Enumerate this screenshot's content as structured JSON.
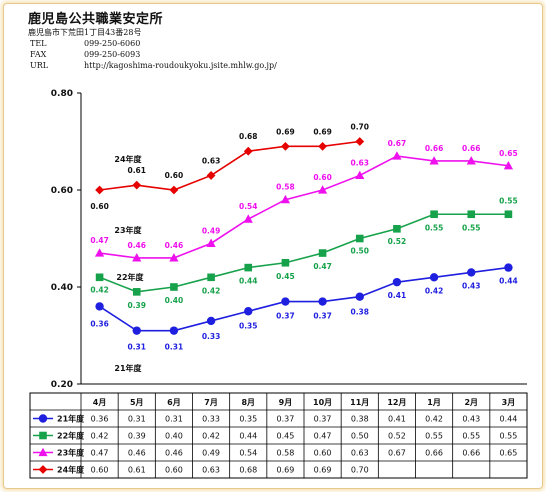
{
  "header": {
    "org_name": "鹿児島公共職業安定所",
    "address": "鹿児島市下荒田1丁目43番28号",
    "tel_label": "TEL",
    "tel": "099-250-6060",
    "fax_label": "FAX",
    "fax": "099-250-6093",
    "url_label": "URL",
    "url": "http://kagoshima-roudoukyoku.jsite.mhlw.go.jp/"
  },
  "chart_data": {
    "type": "line",
    "categories": [
      "4月",
      "5月",
      "6月",
      "7月",
      "8月",
      "9月",
      "10月",
      "11月",
      "12月",
      "1月",
      "2月",
      "3月"
    ],
    "ylim": [
      0.2,
      0.8
    ],
    "yticks": [
      "0.80",
      "0.60",
      "0.40",
      "0.20"
    ],
    "grid": false,
    "legend": "table-below",
    "series": [
      {
        "name": "21年度",
        "color": "#1f1fe0",
        "marker": "circle",
        "values": [
          0.36,
          0.31,
          0.31,
          0.33,
          0.35,
          0.37,
          0.37,
          0.38,
          0.41,
          0.42,
          0.43,
          0.44
        ],
        "labels": [
          "0.36",
          "0.31",
          "0.31",
          "0.33",
          "0.35",
          "0.37",
          "0.37",
          "0.38",
          "0.41",
          "0.42",
          "0.43",
          "0.44"
        ]
      },
      {
        "name": "22年度",
        "color": "#16a24a",
        "marker": "square",
        "values": [
          0.42,
          0.39,
          0.4,
          0.42,
          0.44,
          0.45,
          0.47,
          0.5,
          0.52,
          0.55,
          0.55,
          0.55
        ],
        "labels": [
          "0.42",
          "0.39",
          "0.40",
          "0.42",
          "0.44",
          "0.45",
          "0.47",
          "0.50",
          "0.52",
          "0.55",
          "0.55",
          "0.55"
        ]
      },
      {
        "name": "23年度",
        "color": "#ee11ee",
        "marker": "triangle",
        "values": [
          0.47,
          0.46,
          0.46,
          0.49,
          0.54,
          0.58,
          0.6,
          0.63,
          0.67,
          0.66,
          0.66,
          0.65
        ],
        "labels": [
          "0.47",
          "0.46",
          "0.46",
          "0.49",
          "0.54",
          "0.58",
          "0.60",
          "0.63",
          "0.67",
          "0.66",
          "0.66",
          "0.65"
        ]
      },
      {
        "name": "24年度",
        "color": "#e60000",
        "marker": "diamond",
        "values": [
          0.6,
          0.61,
          0.6,
          0.63,
          0.68,
          0.69,
          0.69,
          0.7,
          null,
          null,
          null,
          null
        ],
        "labels": [
          "0.60",
          "0.61",
          "0.60",
          "0.63",
          "0.68",
          "0.69",
          "0.69",
          "0.70",
          "",
          "",
          "",
          ""
        ]
      }
    ]
  }
}
